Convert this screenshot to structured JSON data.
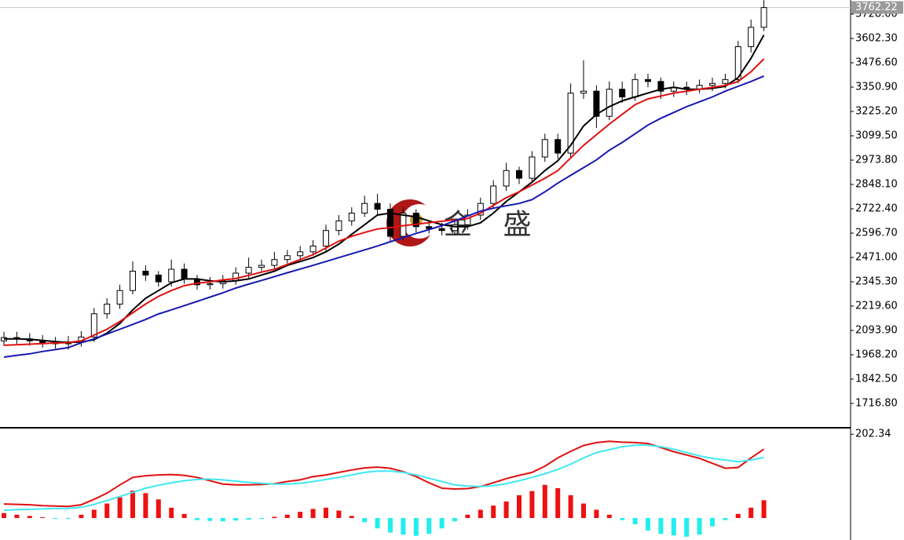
{
  "chart_data": [
    {
      "type": "candlestick",
      "annotation": "金 盛",
      "last_price": 3762.22,
      "ylim": [
        1591,
        3801
      ],
      "yticks": [
        {
          "value": 1716.8,
          "label": "1716.80"
        },
        {
          "value": 1842.5,
          "label": "1842.50"
        },
        {
          "value": 1968.2,
          "label": "1968.20"
        },
        {
          "value": 2093.9,
          "label": "2093.90"
        },
        {
          "value": 2219.6,
          "label": "2219.60"
        },
        {
          "value": 2345.3,
          "label": "2345.30"
        },
        {
          "value": 2471,
          "label": "2471.00"
        },
        {
          "value": 2596.7,
          "label": "2596.70"
        },
        {
          "value": 2722.4,
          "label": "2722.40"
        },
        {
          "value": 2848.1,
          "label": "2848.10"
        },
        {
          "value": 2973.8,
          "label": "2973.80"
        },
        {
          "value": 3099.5,
          "label": "3099.50"
        },
        {
          "value": 3225.2,
          "label": "3225.20"
        },
        {
          "value": 3350.9,
          "label": "3350.90"
        },
        {
          "value": 3476.6,
          "label": "3476.60"
        },
        {
          "value": 3602.3,
          "label": "3602.30"
        },
        {
          "value": 3728,
          "label": "3728.00"
        }
      ],
      "open": [
        2040,
        2057,
        2050,
        2040,
        2030,
        2025,
        2035,
        2060,
        2180,
        2230,
        2300,
        2400,
        2380,
        2345,
        2410,
        2360,
        2330,
        2335,
        2350,
        2390,
        2420,
        2430,
        2460,
        2480,
        2500,
        2530,
        2610,
        2660,
        2700,
        2750,
        2720,
        2580,
        2700,
        2630,
        2620,
        2610,
        2640,
        2690,
        2750,
        2840,
        2920,
        2880,
        2990,
        3080,
        3010,
        3320,
        3330,
        3200,
        3340,
        3300,
        3390,
        3380,
        3330,
        3350,
        3340,
        3360,
        3370,
        3390,
        3560,
        3660
      ],
      "high": [
        2087,
        2087,
        2080,
        2070,
        2060,
        2065,
        2090,
        2210,
        2260,
        2330,
        2450,
        2430,
        2400,
        2460,
        2440,
        2380,
        2370,
        2380,
        2420,
        2470,
        2460,
        2500,
        2510,
        2530,
        2560,
        2640,
        2690,
        2730,
        2790,
        2800,
        2750,
        2730,
        2720,
        2660,
        2650,
        2670,
        2720,
        2780,
        2870,
        2960,
        2940,
        3020,
        3110,
        3110,
        3370,
        3490,
        3360,
        3380,
        3380,
        3420,
        3420,
        3400,
        3380,
        3380,
        3390,
        3400,
        3420,
        3590,
        3700,
        3800
      ],
      "low": [
        2015,
        2025,
        2015,
        2005,
        2000,
        1995,
        2010,
        2035,
        2155,
        2205,
        2280,
        2350,
        2320,
        2320,
        2335,
        2305,
        2305,
        2310,
        2330,
        2365,
        2400,
        2410,
        2440,
        2460,
        2480,
        2505,
        2585,
        2635,
        2680,
        2690,
        2550,
        2560,
        2600,
        2595,
        2585,
        2590,
        2615,
        2665,
        2725,
        2815,
        2850,
        2860,
        2965,
        2980,
        2985,
        3290,
        3140,
        3180,
        3270,
        3280,
        3350,
        3290,
        3300,
        3310,
        3320,
        3330,
        3345,
        3370,
        3530,
        3640
      ],
      "close": [
        2057,
        2050,
        2040,
        2030,
        2025,
        2035,
        2060,
        2180,
        2230,
        2300,
        2400,
        2380,
        2345,
        2410,
        2360,
        2330,
        2335,
        2350,
        2390,
        2420,
        2430,
        2460,
        2480,
        2500,
        2530,
        2610,
        2660,
        2700,
        2750,
        2720,
        2580,
        2700,
        2630,
        2620,
        2610,
        2640,
        2690,
        2750,
        2840,
        2920,
        2880,
        2990,
        3080,
        3010,
        3320,
        3330,
        3200,
        3340,
        3300,
        3390,
        3380,
        3330,
        3350,
        3340,
        3360,
        3370,
        3390,
        3560,
        3660,
        3762
      ],
      "series": [
        {
          "color": "#000000",
          "values": [
            2050,
            2050,
            2048,
            2042,
            2036,
            2032,
            2034,
            2046,
            2080,
            2130,
            2200,
            2260,
            2300,
            2340,
            2360,
            2360,
            2350,
            2345,
            2350,
            2360,
            2380,
            2400,
            2430,
            2450,
            2470,
            2500,
            2540,
            2590,
            2640,
            2690,
            2700,
            2690,
            2680,
            2660,
            2640,
            2630,
            2630,
            2650,
            2700,
            2760,
            2810,
            2860,
            2920,
            2970,
            3050,
            3150,
            3210,
            3250,
            3280,
            3300,
            3320,
            3340,
            3350,
            3340,
            3340,
            3345,
            3355,
            3400,
            3500,
            3620
          ]
        },
        {
          "color": "#e01010",
          "values": [
            2017,
            2020,
            2023,
            2026,
            2029,
            2031,
            2040,
            2070,
            2100,
            2140,
            2185,
            2230,
            2270,
            2300,
            2325,
            2338,
            2345,
            2355,
            2362,
            2378,
            2395,
            2410,
            2435,
            2460,
            2485,
            2520,
            2555,
            2580,
            2600,
            2618,
            2625,
            2635,
            2642,
            2650,
            2658,
            2665,
            2672,
            2700,
            2740,
            2780,
            2810,
            2845,
            2880,
            2920,
            2985,
            3050,
            3105,
            3160,
            3210,
            3260,
            3290,
            3305,
            3320,
            3330,
            3340,
            3350,
            3360,
            3380,
            3430,
            3497
          ]
        },
        {
          "color": "#1818b0",
          "values": [
            1956,
            1965,
            1973,
            1985,
            1995,
            2005,
            2030,
            2050,
            2075,
            2100,
            2125,
            2150,
            2179,
            2200,
            2222,
            2244,
            2266,
            2288,
            2313,
            2333,
            2352,
            2372,
            2392,
            2411,
            2430,
            2450,
            2470,
            2490,
            2510,
            2530,
            2552,
            2573,
            2595,
            2615,
            2635,
            2660,
            2685,
            2710,
            2725,
            2738,
            2750,
            2770,
            2810,
            2855,
            2895,
            2935,
            2975,
            3025,
            3065,
            3110,
            3155,
            3190,
            3220,
            3250,
            3275,
            3300,
            3330,
            3355,
            3380,
            3408
          ]
        }
      ]
    },
    {
      "type": "bar",
      "ylim": [
        -53,
        214
      ],
      "yticks": [
        202.34
      ],
      "positive_color": "#ee1111",
      "negative_color": "#22eeee",
      "values": [
        12,
        8,
        5,
        2,
        -2,
        -1,
        8,
        20,
        35,
        50,
        66,
        60,
        45,
        25,
        10,
        -5,
        -7,
        -8,
        -6,
        -4,
        -2,
        3,
        8,
        15,
        22,
        25,
        18,
        5,
        -10,
        -25,
        -35,
        -40,
        -43,
        -38,
        -25,
        -8,
        8,
        20,
        30,
        40,
        55,
        65,
        80,
        72,
        55,
        35,
        20,
        8,
        -5,
        -15,
        -30,
        -38,
        -42,
        -45,
        -40,
        -20,
        -5,
        10,
        25,
        43
      ],
      "series": [
        {
          "color": "#e01010",
          "values": [
            34,
            33,
            32,
            30,
            29,
            28,
            32,
            45,
            60,
            80,
            98,
            102,
            104,
            105,
            103,
            98,
            90,
            82,
            80,
            80,
            81,
            83,
            88,
            92,
            100,
            104,
            110,
            116,
            121,
            123,
            120,
            112,
            100,
            85,
            72,
            70,
            71,
            76,
            85,
            95,
            103,
            110,
            125,
            145,
            161,
            175,
            182,
            185,
            183,
            182,
            180,
            170,
            160,
            152,
            144,
            132,
            120,
            122,
            145,
            166
          ]
        },
        {
          "color": "#40e8f0",
          "values": [
            19,
            20,
            21,
            22,
            23,
            23,
            26,
            33,
            42,
            52,
            62,
            72,
            79,
            85,
            90,
            93,
            94,
            92,
            89,
            86,
            84,
            82,
            82,
            84,
            88,
            93,
            98,
            104,
            110,
            113,
            113,
            110,
            104,
            96,
            88,
            80,
            77,
            76,
            78,
            83,
            90,
            98,
            107,
            117,
            130,
            145,
            158,
            165,
            172,
            176,
            176,
            172,
            166,
            158,
            150,
            144,
            140,
            136,
            140,
            146
          ]
        }
      ]
    }
  ]
}
